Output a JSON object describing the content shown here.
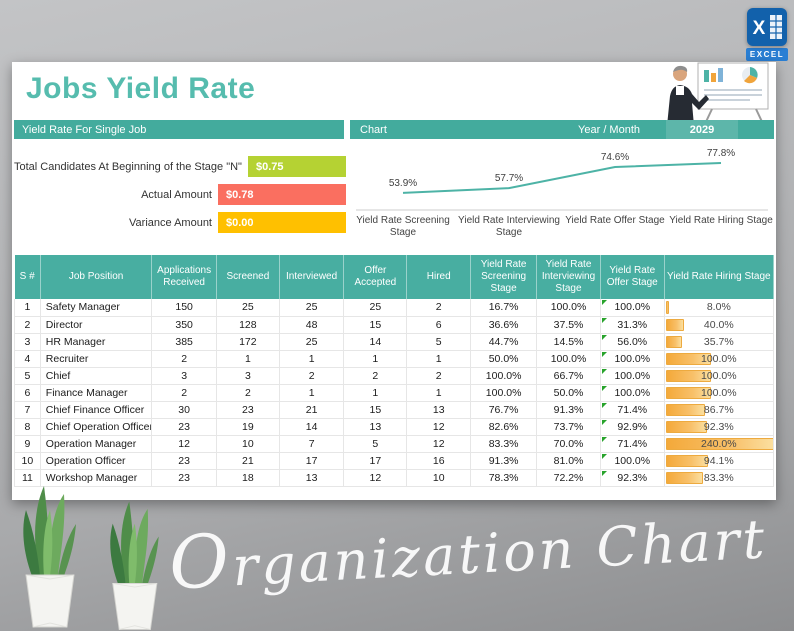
{
  "page": {
    "title": "Jobs Yield Rate",
    "watermark": "Organization Chart",
    "excel_badge": "EXCEL"
  },
  "header_bar": {
    "left_label": "Yield Rate For Single Job",
    "chart_label": "Chart",
    "year_label": "Year / Month",
    "year_value": "2029"
  },
  "summary": {
    "rows": [
      {
        "label": "Total Candidates At Beginning of the Stage \"N\"",
        "value": "$0.75",
        "color": "#b5d233"
      },
      {
        "label": "Actual Amount",
        "value": "$0.78",
        "color": "#fa6f60"
      },
      {
        "label": "Variance Amount",
        "value": "$0.00",
        "color": "#ffc000"
      }
    ]
  },
  "chart_data": {
    "type": "line",
    "title": "Chart",
    "categories": [
      "Yield Rate Screening Stage",
      "Yield Rate Interviewing Stage",
      "Yield Rate Offer Stage",
      "Yield Rate Hiring Stage"
    ],
    "values": [
      53.9,
      57.7,
      74.6,
      77.8
    ],
    "labels": [
      "53.9%",
      "57.7%",
      "74.6%",
      "77.8%"
    ],
    "ylim": [
      45,
      85
    ],
    "line_color": "#4db3a6",
    "grid": false,
    "legend": "none"
  },
  "table": {
    "headers": [
      "S #",
      "Job Position",
      "Applications Received",
      "Screened",
      "Interviewed",
      "Offer Accepted",
      "Hired",
      "Yield Rate Screening Stage",
      "Yield Rate Interviewing Stage",
      "Yield Rate Offer Stage",
      "Yield Rate Hiring Stage"
    ],
    "rows": [
      {
        "sn": 1,
        "position": "Safety Manager",
        "applications": 150,
        "screened": 25,
        "interviewed": 25,
        "offer": 25,
        "hired": 2,
        "screening_rate": "16.7%",
        "interviewing_rate": "100.0%",
        "offer_rate": "100.0%",
        "offer_flag": true,
        "hiring_rate": "8.0%",
        "hiring_value": 8.0
      },
      {
        "sn": 2,
        "position": "Director",
        "applications": 350,
        "screened": 128,
        "interviewed": 48,
        "offer": 15,
        "hired": 6,
        "screening_rate": "36.6%",
        "interviewing_rate": "37.5%",
        "offer_rate": "31.3%",
        "offer_flag": true,
        "hiring_rate": "40.0%",
        "hiring_value": 40.0
      },
      {
        "sn": 3,
        "position": "HR Manager",
        "applications": 385,
        "screened": 172,
        "interviewed": 25,
        "offer": 14,
        "hired": 5,
        "screening_rate": "44.7%",
        "interviewing_rate": "14.5%",
        "offer_rate": "56.0%",
        "offer_flag": true,
        "hiring_rate": "35.7%",
        "hiring_value": 35.7
      },
      {
        "sn": 4,
        "position": "Recruiter",
        "applications": 2,
        "screened": 1,
        "interviewed": 1,
        "offer": 1,
        "hired": 1,
        "screening_rate": "50.0%",
        "interviewing_rate": "100.0%",
        "offer_rate": "100.0%",
        "offer_flag": true,
        "hiring_rate": "100.0%",
        "hiring_value": 100.0
      },
      {
        "sn": 5,
        "position": "Chief",
        "applications": 3,
        "screened": 3,
        "interviewed": 2,
        "offer": 2,
        "hired": 2,
        "screening_rate": "100.0%",
        "interviewing_rate": "66.7%",
        "offer_rate": "100.0%",
        "offer_flag": true,
        "hiring_rate": "100.0%",
        "hiring_value": 100.0
      },
      {
        "sn": 6,
        "position": "Finance Manager",
        "applications": 2,
        "screened": 2,
        "interviewed": 1,
        "offer": 1,
        "hired": 1,
        "screening_rate": "100.0%",
        "interviewing_rate": "50.0%",
        "offer_rate": "100.0%",
        "offer_flag": true,
        "hiring_rate": "100.0%",
        "hiring_value": 100.0
      },
      {
        "sn": 7,
        "position": "Chief Finance Officer",
        "applications": 30,
        "screened": 23,
        "interviewed": 21,
        "offer": 15,
        "hired": 13,
        "screening_rate": "76.7%",
        "interviewing_rate": "91.3%",
        "offer_rate": "71.4%",
        "offer_flag": true,
        "hiring_rate": "86.7%",
        "hiring_value": 86.7
      },
      {
        "sn": 8,
        "position": "Chief Operation Officer",
        "applications": 23,
        "screened": 19,
        "interviewed": 14,
        "offer": 13,
        "hired": 12,
        "screening_rate": "82.6%",
        "interviewing_rate": "73.7%",
        "offer_rate": "92.9%",
        "offer_flag": true,
        "hiring_rate": "92.3%",
        "hiring_value": 92.3
      },
      {
        "sn": 9,
        "position": "Operation Manager",
        "applications": 12,
        "screened": 10,
        "interviewed": 7,
        "offer": 5,
        "hired": 12,
        "screening_rate": "83.3%",
        "interviewing_rate": "70.0%",
        "offer_rate": "71.4%",
        "offer_flag": true,
        "hiring_rate": "240.0%",
        "hiring_value": 240.0
      },
      {
        "sn": 10,
        "position": "Operation Officer",
        "applications": 23,
        "screened": 21,
        "interviewed": 17,
        "offer": 17,
        "hired": 16,
        "screening_rate": "91.3%",
        "interviewing_rate": "81.0%",
        "offer_rate": "100.0%",
        "offer_flag": true,
        "hiring_rate": "94.1%",
        "hiring_value": 94.1
      },
      {
        "sn": 11,
        "position": "Workshop Manager",
        "applications": 23,
        "screened": 18,
        "interviewed": 13,
        "offer": 12,
        "hired": 10,
        "screening_rate": "78.3%",
        "interviewing_rate": "72.2%",
        "offer_rate": "92.3%",
        "offer_flag": true,
        "hiring_rate": "83.3%",
        "hiring_value": 83.3
      }
    ]
  },
  "colors": {
    "accent_teal": "#48aea1",
    "title_teal": "#56bcae",
    "databar_orange": "#f4a93a",
    "flag_green": "#28a32c"
  }
}
